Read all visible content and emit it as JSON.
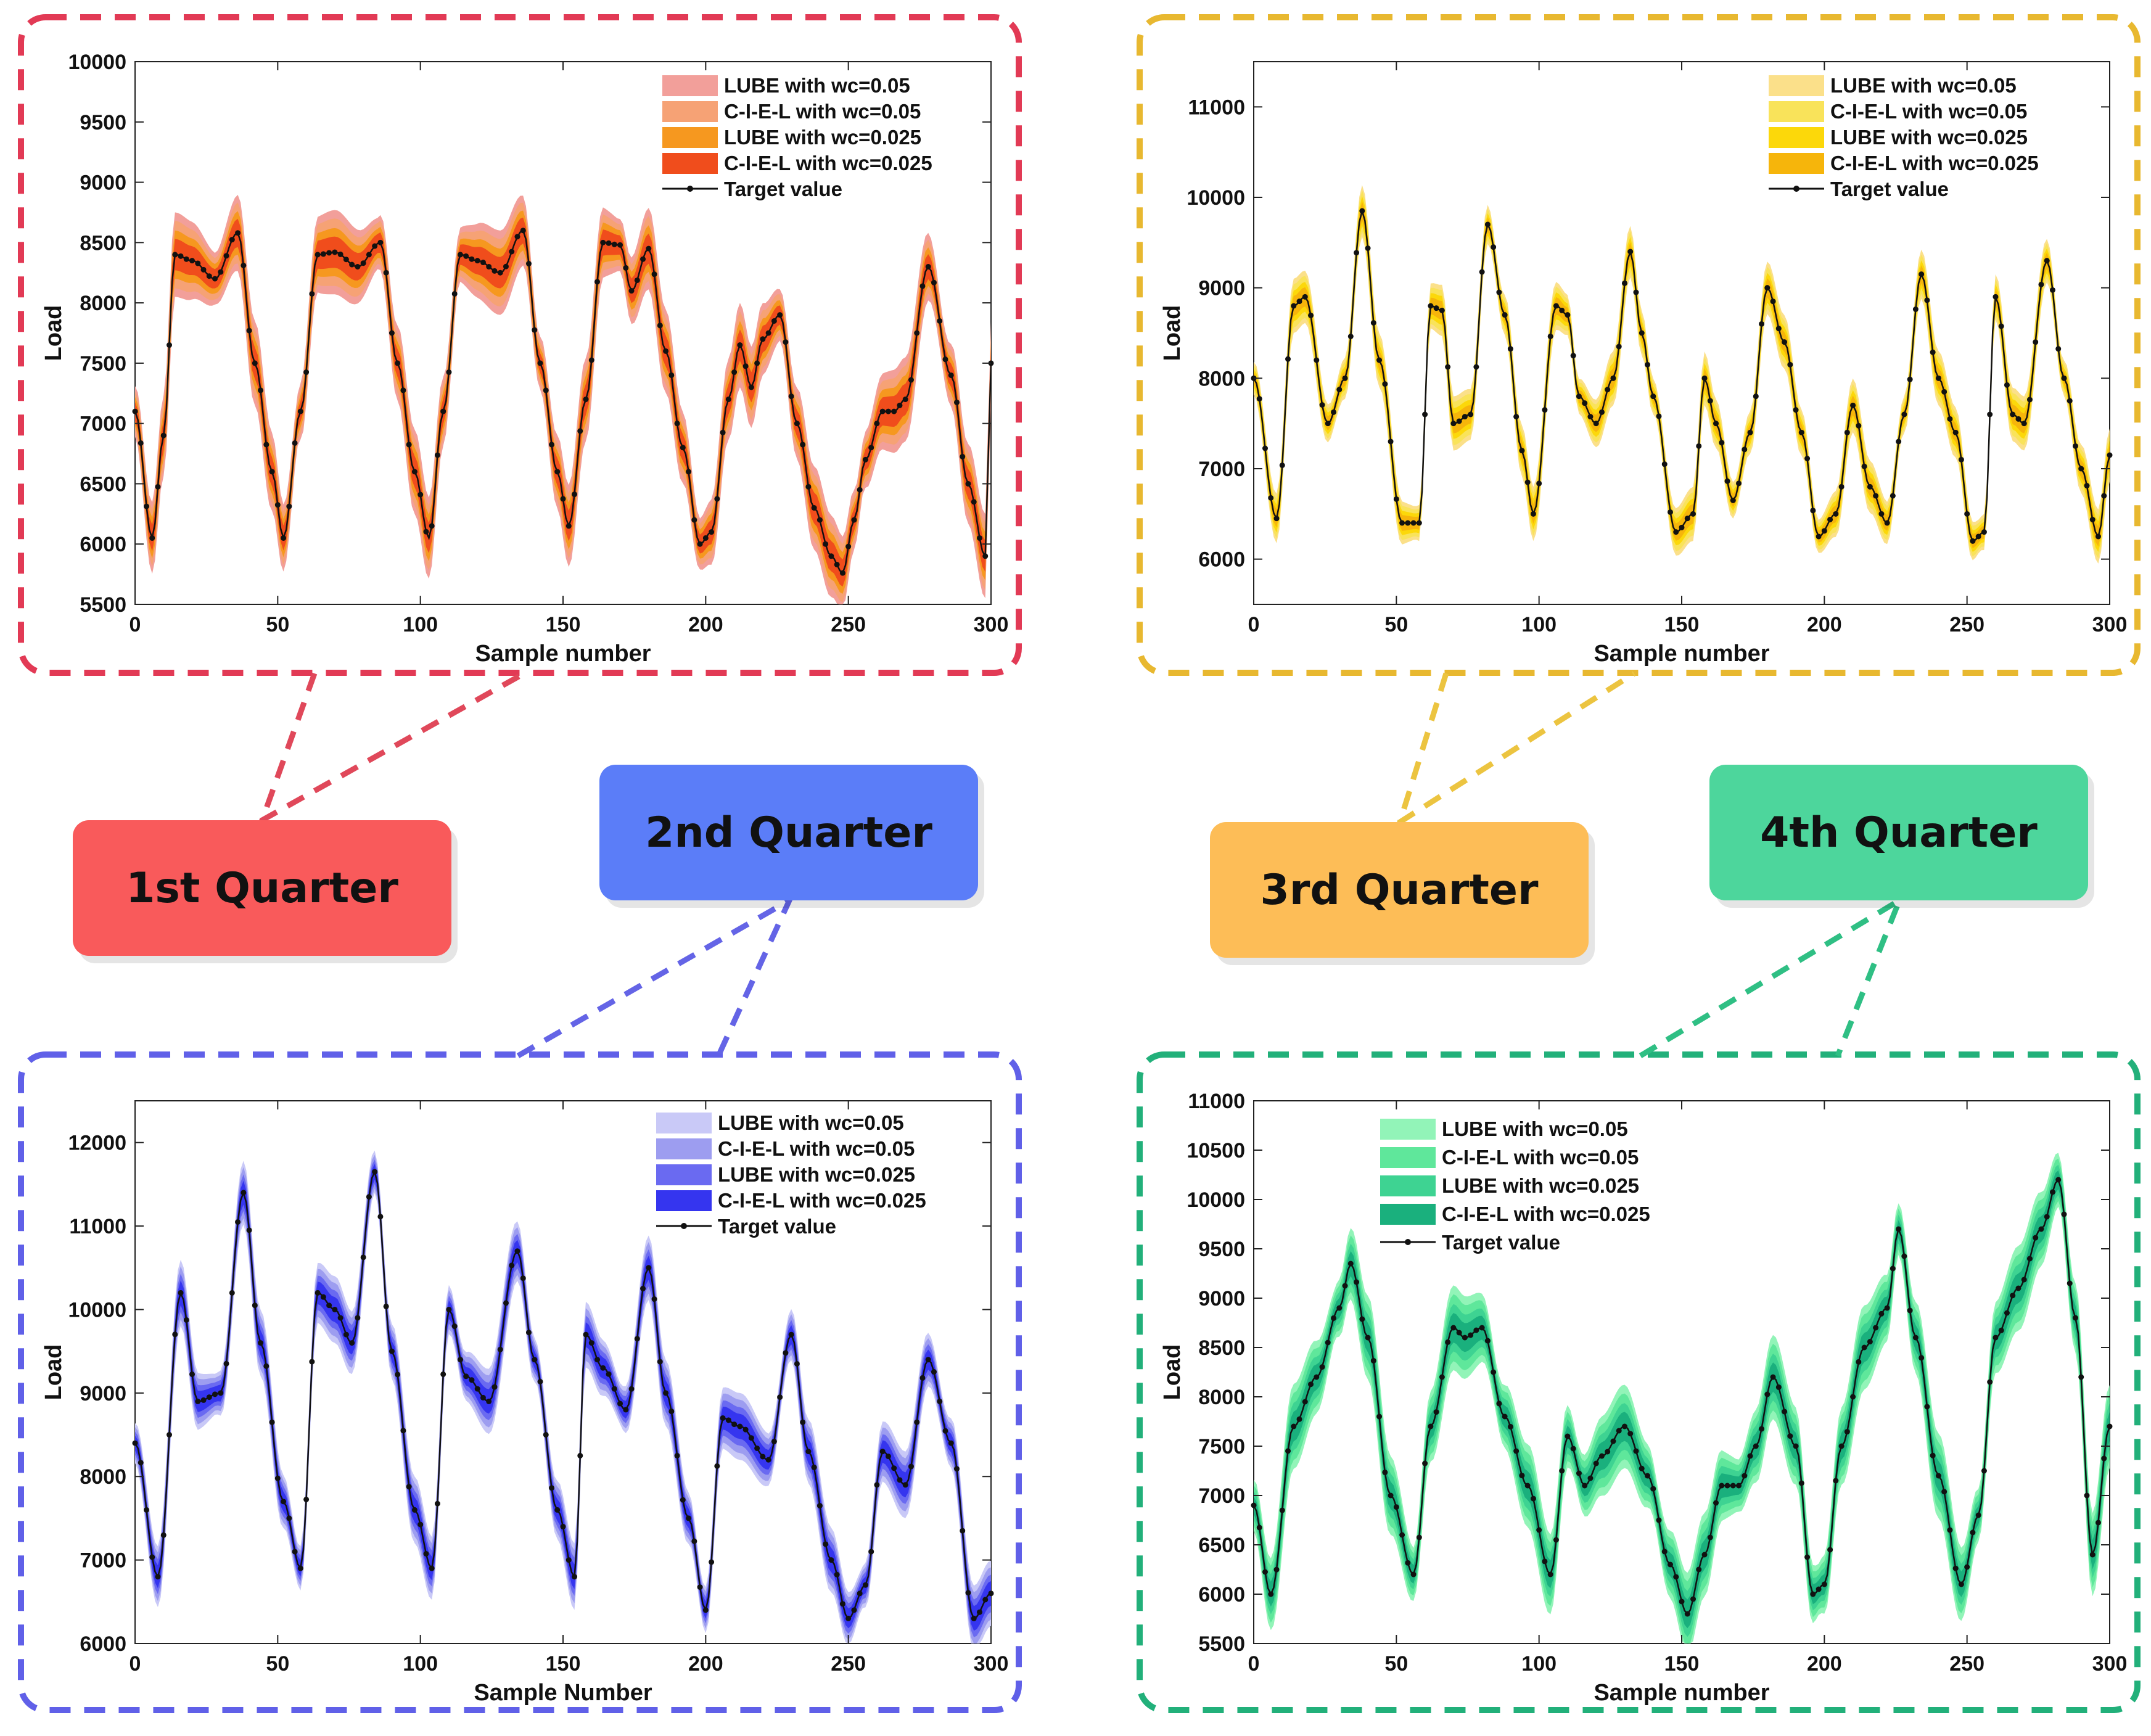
{
  "quarters": [
    {
      "label": "1st Quarter",
      "color": "#f95a5b",
      "border": "#e23a55"
    },
    {
      "label": "2nd Quarter",
      "color": "#5b7df8",
      "border": "#6060e8"
    },
    {
      "label": "3rd Quarter",
      "color": "#fdbd57",
      "border": "#e8b830"
    },
    {
      "label": "4th Quarter",
      "color": "#4dd69c",
      "border": "#22b07a"
    }
  ],
  "chart_data": [
    {
      "type": "area",
      "xlabel": "Sample number",
      "ylabel": "Load",
      "xlim": [
        0,
        300
      ],
      "ylim": [
        5500,
        10000
      ],
      "xticks": [
        0,
        50,
        100,
        150,
        200,
        250,
        300
      ],
      "yticks": [
        5500,
        6000,
        6500,
        7000,
        7500,
        8000,
        8500,
        9000,
        9500,
        10000
      ],
      "legend": [
        "LUBE with wc=0.05",
        "C-I-E-L with wc=0.05",
        "LUBE with wc=0.025",
        "C-I-E-L with wc=0.025",
        "Target value"
      ],
      "band_colors": [
        "#f29f9a",
        "#f6a275",
        "#f6981f",
        "#f04d1c"
      ],
      "band_widths": [
        700,
        560,
        400,
        260
      ],
      "legend_position": "top-right",
      "series_target": {
        "x": [
          0,
          6,
          10,
          14,
          20,
          28,
          36,
          42,
          48,
          52,
          58,
          64,
          70,
          78,
          86,
          92,
          98,
          103,
          108,
          114,
          120,
          128,
          136,
          142,
          148,
          152,
          158,
          164,
          170,
          174,
          180,
          186,
          192,
          198,
          202,
          208,
          212,
          216,
          220,
          226,
          232,
          238,
          244,
          248,
          252,
          256,
          262,
          266,
          270,
          278,
          286,
          292,
          298,
          300
        ],
        "y": [
          7100,
          6050,
          6900,
          8400,
          8350,
          8200,
          8580,
          7500,
          6600,
          6050,
          7100,
          8400,
          8420,
          8300,
          8500,
          7500,
          6600,
          6050,
          7100,
          8400,
          8350,
          8250,
          8600,
          7500,
          6600,
          6150,
          7200,
          8500,
          8480,
          8100,
          8450,
          7600,
          6800,
          6000,
          6100,
          7200,
          7650,
          7300,
          7700,
          7900,
          7000,
          6300,
          5900,
          5760,
          6200,
          6700,
          7100,
          7100,
          7200,
          8300,
          7400,
          6500,
          5900,
          7500
        ]
      }
    },
    {
      "type": "area",
      "xlabel": "Sample number",
      "ylabel": "Load",
      "xlim": [
        0,
        300
      ],
      "ylim": [
        5500,
        11500
      ],
      "xticks": [
        0,
        50,
        100,
        150,
        200,
        250,
        300
      ],
      "yticks": [
        6000,
        7000,
        8000,
        9000,
        10000,
        11000
      ],
      "legend": [
        "LUBE with wc=0.05",
        "C-I-E-L with wc=0.05",
        "LUBE with wc=0.025",
        "C-I-E-L with wc=0.025",
        "Target value"
      ],
      "band_colors": [
        "#fbe08a",
        "#f9e35a",
        "#fcd80a",
        "#f6b50b"
      ],
      "band_widths": [
        600,
        480,
        340,
        220
      ],
      "legend_position": "top-right",
      "series_target": {
        "x": [
          0,
          8,
          14,
          18,
          26,
          32,
          38,
          44,
          52,
          58,
          62,
          66,
          70,
          76,
          82,
          88,
          94,
          98,
          106,
          110,
          114,
          120,
          126,
          132,
          136,
          140,
          148,
          154,
          158,
          162,
          168,
          174,
          180,
          186,
          192,
          198,
          204,
          210,
          216,
          222,
          228,
          234,
          240,
          246,
          252,
          256,
          260,
          266,
          270,
          278,
          284,
          290,
          296,
          300
        ],
        "y": [
          8000,
          6450,
          8800,
          8900,
          7500,
          8000,
          9850,
          8200,
          6400,
          6400,
          8800,
          8750,
          7500,
          7600,
          9700,
          8700,
          7200,
          6500,
          8800,
          8700,
          7800,
          7500,
          8000,
          9400,
          8500,
          7800,
          6300,
          6500,
          8000,
          7500,
          6650,
          7400,
          9000,
          8400,
          7400,
          6250,
          6500,
          7700,
          6800,
          6400,
          7600,
          9150,
          8000,
          7400,
          6200,
          6300,
          8900,
          7600,
          7500,
          9300,
          8000,
          7000,
          6250,
          7150
        ]
      }
    },
    {
      "type": "area",
      "xlabel": "Sample Number",
      "ylabel": "Load",
      "xlim": [
        0,
        300
      ],
      "ylim": [
        6000,
        12500
      ],
      "xticks": [
        0,
        50,
        100,
        150,
        200,
        250,
        300
      ],
      "yticks": [
        6000,
        7000,
        8000,
        9000,
        10000,
        11000,
        12000
      ],
      "legend": [
        "LUBE with wc=0.05",
        "C-I-E-L with wc=0.05",
        "LUBE with wc=0.025",
        "C-I-E-L with wc=0.025",
        "Target value"
      ],
      "band_colors": [
        "#c9c9f7",
        "#9d9df0",
        "#6a6af1",
        "#3535ef"
      ],
      "band_widths": [
        800,
        640,
        460,
        300
      ],
      "legend_position": "top-right",
      "series_target": {
        "x": [
          0,
          8,
          16,
          22,
          30,
          38,
          44,
          52,
          58,
          64,
          70,
          76,
          84,
          90,
          98,
          104,
          110,
          116,
          124,
          134,
          140,
          148,
          154,
          158,
          164,
          172,
          180,
          186,
          194,
          200,
          206,
          212,
          222,
          230,
          236,
          244,
          250,
          256,
          262,
          270,
          278,
          286,
          294,
          300
        ],
        "y": [
          8400,
          6800,
          10200,
          8900,
          9000,
          11400,
          9600,
          7700,
          6900,
          10200,
          10000,
          9600,
          11650,
          9500,
          7600,
          6900,
          10000,
          9200,
          8900,
          10700,
          9400,
          7600,
          6800,
          9700,
          9300,
          8800,
          10500,
          9000,
          7500,
          6400,
          8700,
          8600,
          8200,
          9700,
          8300,
          7000,
          6300,
          6700,
          8300,
          7900,
          9400,
          8400,
          6300,
          6600
        ]
      }
    },
    {
      "type": "area",
      "xlabel": "Sample number",
      "ylabel": "Load",
      "xlim": [
        0,
        300
      ],
      "ylim": [
        5500,
        11000
      ],
      "xticks": [
        0,
        50,
        100,
        150,
        200,
        250,
        300
      ],
      "yticks": [
        5500,
        6000,
        6500,
        7000,
        7500,
        8000,
        8500,
        9000,
        9500,
        10000,
        10500,
        11000
      ],
      "legend": [
        "LUBE with wc=0.05",
        "C-I-E-L with wc=0.05",
        "LUBE with wc=0.025",
        "C-I-E-L with wc=0.025",
        "Target value"
      ],
      "band_colors": [
        "#92f4b8",
        "#5fe79b",
        "#3ed392",
        "#1ab07d"
      ],
      "band_widths": [
        860,
        680,
        480,
        300
      ],
      "legend_position": "top-left",
      "series_target": {
        "x": [
          0,
          6,
          14,
          22,
          30,
          34,
          40,
          48,
          56,
          62,
          70,
          74,
          80,
          88,
          96,
          104,
          110,
          116,
          122,
          130,
          138,
          146,
          152,
          158,
          164,
          170,
          176,
          182,
          190,
          196,
          200,
          206,
          214,
          222,
          226,
          232,
          240,
          248,
          254,
          260,
          268,
          276,
          282,
          288,
          294,
          300
        ],
        "y": [
          6900,
          6000,
          7700,
          8200,
          8900,
          9350,
          8600,
          7000,
          6200,
          7700,
          8700,
          8600,
          8700,
          7800,
          7100,
          6200,
          7600,
          7100,
          7400,
          7700,
          7200,
          6300,
          5800,
          6400,
          7100,
          7100,
          7500,
          8200,
          7500,
          6000,
          6100,
          7500,
          8500,
          8900,
          9700,
          8600,
          7200,
          6100,
          6800,
          8600,
          9100,
          9700,
          10200,
          8800,
          6400,
          7700
        ]
      }
    }
  ]
}
